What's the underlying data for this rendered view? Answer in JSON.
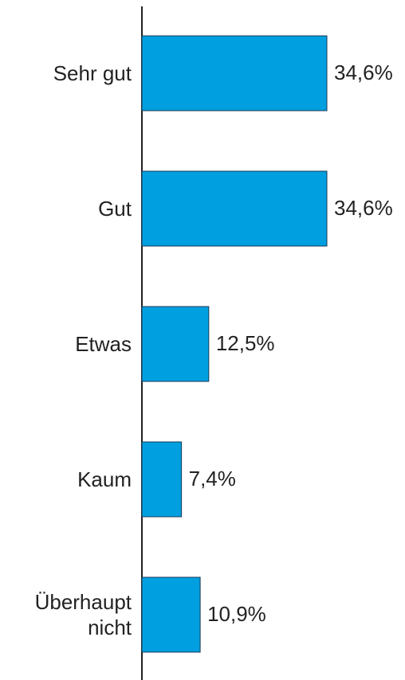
{
  "chart_data": {
    "type": "bar",
    "orientation": "horizontal",
    "categories": [
      "Sehr gut",
      "Gut",
      "Etwas",
      "Kaum",
      "Überhaupt nicht"
    ],
    "values": [
      34.6,
      34.6,
      12.5,
      7.4,
      10.9
    ],
    "value_labels": [
      "34,6%",
      "34,6%",
      "12,5%",
      "7,4%",
      "10,9%"
    ],
    "color": "#009fe0"
  }
}
